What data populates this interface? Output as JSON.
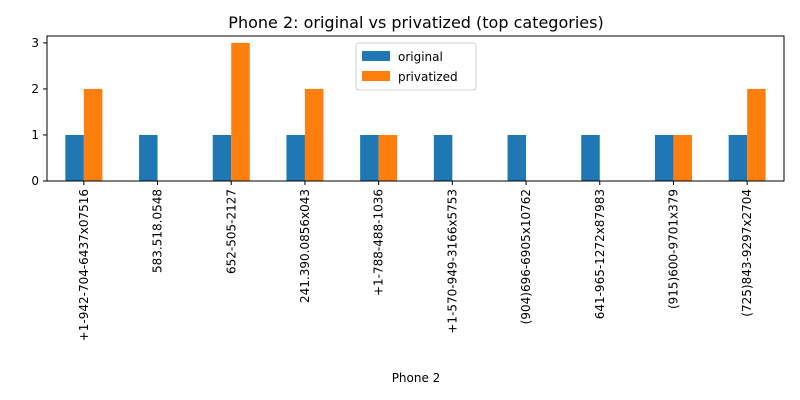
{
  "chart_data": {
    "type": "bar",
    "title": "Phone 2: original vs privatized (top categories)",
    "xlabel": "Phone 2",
    "ylabel": "",
    "categories": [
      "+1-942-704-6437x07516",
      "583.518.0548",
      "652-505-2127",
      "241.390.0856x043",
      "+1-788-488-1036",
      "+1-570-949-3166x5753",
      "(904)696-6905x10762",
      "641-965-1272x87983",
      "(915)600-9701x379",
      "(725)843-9297x2704"
    ],
    "series": [
      {
        "name": "original",
        "color": "#1f77b4",
        "values": [
          1,
          1,
          1,
          1,
          1,
          1,
          1,
          1,
          1,
          1
        ]
      },
      {
        "name": "privatized",
        "color": "#ff7f0e",
        "values": [
          2,
          0,
          3,
          2,
          1,
          0,
          0,
          0,
          1,
          2
        ]
      }
    ],
    "ylim": [
      0,
      3.15
    ],
    "yticks": [
      0,
      1,
      2,
      3
    ],
    "grid": false,
    "legend_position": "top-center"
  }
}
